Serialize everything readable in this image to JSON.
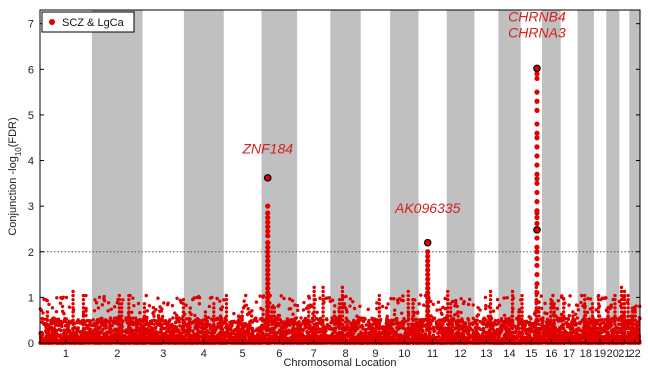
{
  "chart_data": {
    "type": "scatter",
    "title": "",
    "xlabel": "Chromosomal Location",
    "ylabel": "Conjunction -log",
    "ylabel_sub": "10",
    "ylabel_tail": "(FDR)",
    "ylim": [
      0,
      7.3
    ],
    "yticks": [
      0,
      1,
      2,
      3,
      4,
      5,
      6,
      7
    ],
    "threshold": 2,
    "grid": false,
    "legend": {
      "placement": "top-left",
      "entries": [
        {
          "name": "SCZ & LgCa",
          "color": "#e00000"
        }
      ]
    },
    "colors": {
      "points": "#e00000",
      "shade": "#c0c0c0",
      "threshold_line": "#555555"
    },
    "chromosomes": [
      {
        "label": "1",
        "length": 249
      },
      {
        "label": "2",
        "length": 243
      },
      {
        "label": "3",
        "length": 198
      },
      {
        "label": "4",
        "length": 191
      },
      {
        "label": "5",
        "length": 181
      },
      {
        "label": "6",
        "length": 171
      },
      {
        "label": "7",
        "length": 159
      },
      {
        "label": "8",
        "length": 146
      },
      {
        "label": "9",
        "length": 141
      },
      {
        "label": "10",
        "length": 136
      },
      {
        "label": "11",
        "length": 135
      },
      {
        "label": "12",
        "length": 133
      },
      {
        "label": "13",
        "length": 115
      },
      {
        "label": "14",
        "length": 107
      },
      {
        "label": "15",
        "length": 102
      },
      {
        "label": "16",
        "length": 90
      },
      {
        "label": "17",
        "length": 81
      },
      {
        "label": "18",
        "length": 78
      },
      {
        "label": "19",
        "length": 59
      },
      {
        "label": "20",
        "length": 63
      },
      {
        "label": "21",
        "length": 48
      },
      {
        "label": "22",
        "length": 51
      }
    ],
    "peaks": [
      {
        "chromosome": "6",
        "position": 30,
        "lead": 3.62,
        "column_values": [
          3.62,
          3.0,
          2.85,
          2.75,
          2.65,
          2.55,
          2.45,
          2.35,
          2.2,
          2.1,
          2.0,
          1.9,
          1.8,
          1.7,
          1.6,
          1.5,
          1.4,
          1.3,
          1.2,
          1.1,
          1.0,
          0.9,
          0.8,
          0.7,
          0.6,
          0.5,
          0.4,
          0.3
        ]
      },
      {
        "chromosome": "11",
        "position": 44,
        "lead": 2.2,
        "column_values": [
          2.2,
          2.0,
          1.9,
          1.8,
          1.7,
          1.6,
          1.5,
          1.4,
          1.3,
          1.2,
          1.1,
          1.0,
          0.9,
          0.8,
          0.7,
          0.6,
          0.5,
          0.4,
          0.3
        ]
      },
      {
        "chromosome": "15",
        "position": 78,
        "lead": 6.02,
        "column_values": [
          6.02,
          5.9,
          5.8,
          5.5,
          5.3,
          5.1,
          4.8,
          4.6,
          4.5,
          4.3,
          4.1,
          3.9,
          3.7,
          3.6,
          3.5,
          3.3,
          3.1,
          2.9,
          2.85,
          2.75,
          2.62,
          2.48,
          2.3,
          2.1,
          2.0,
          1.85,
          1.7,
          1.5,
          1.3,
          1.1,
          0.9,
          0.7,
          0.5,
          0.3
        ]
      }
    ],
    "lead_snps": [
      {
        "chromosome": "6",
        "position": 30,
        "value": 3.62
      },
      {
        "chromosome": "11",
        "position": 44,
        "value": 2.2
      },
      {
        "chromosome": "15",
        "position": 78,
        "value": 6.02
      },
      {
        "chromosome": "15",
        "position": 78,
        "value": 2.48
      }
    ],
    "annotations": [
      {
        "text": "ZNF184",
        "chromosome": "6",
        "position": 30,
        "y": 4.15
      },
      {
        "text": "AK096335",
        "chromosome": "11",
        "position": 44,
        "y": 2.85
      },
      {
        "text": "CHRNB4",
        "chromosome": "15",
        "position": 78,
        "y": 7.05
      },
      {
        "text": "CHRNA3",
        "chromosome": "15",
        "position": 78,
        "y": 6.7
      }
    ]
  }
}
